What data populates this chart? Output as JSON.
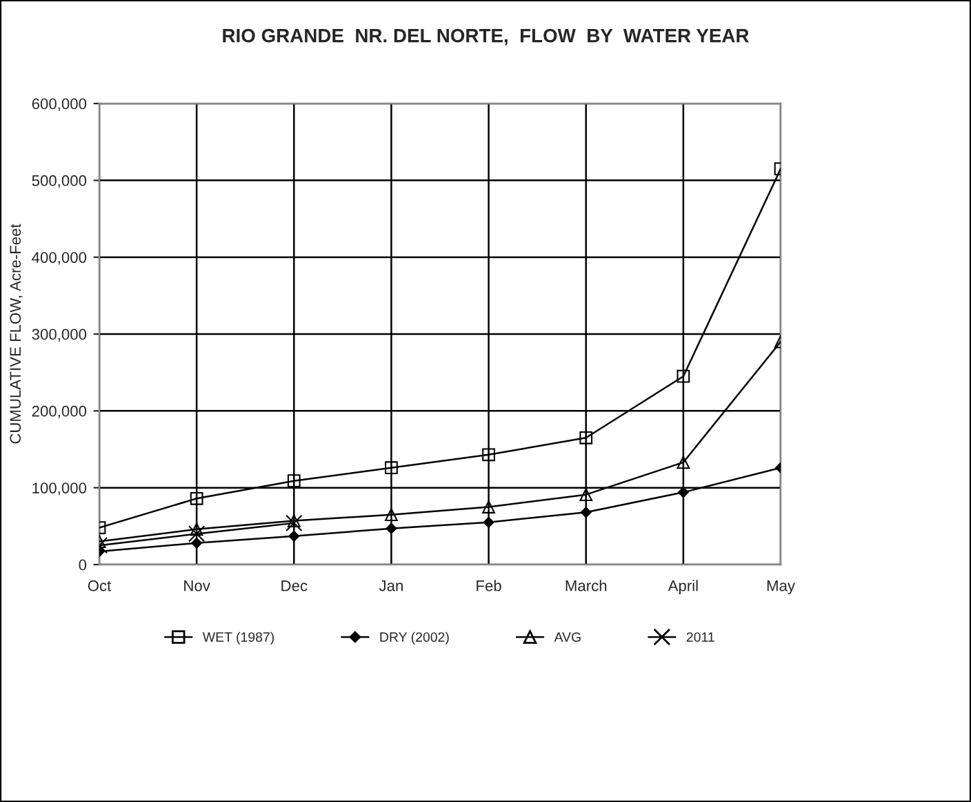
{
  "chart_data": {
    "type": "line",
    "title": "RIO GRANDE  NR. DEL NORTE,  FLOW  BY  WATER YEAR",
    "ylabel": "CUMULATIVE FLOW, Acre-Feet",
    "categories": [
      "Oct",
      "Nov",
      "Dec",
      "Jan",
      "Feb",
      "March",
      "April",
      "May"
    ],
    "series": [
      {
        "name": "WET (1987)",
        "color": "#000000",
        "marker": "square",
        "values": [
          48000,
          86000,
          109000,
          126000,
          143000,
          165000,
          245000,
          515000
        ]
      },
      {
        "name": "DRY (2002)",
        "color": "#000000",
        "marker": "diamond",
        "values": [
          17000,
          28000,
          37000,
          47000,
          55000,
          68000,
          94000,
          126000
        ]
      },
      {
        "name": "AVG",
        "color": "#000000",
        "marker": "triangle",
        "values": [
          30000,
          46000,
          57000,
          65000,
          75000,
          91000,
          133000,
          290000
        ]
      },
      {
        "name": "2011",
        "color": "#000000",
        "marker": "cross",
        "values": [
          25000,
          40000,
          54000,
          null,
          null,
          null,
          null,
          null
        ]
      }
    ],
    "ylim": [
      0,
      600000
    ],
    "yticks": [
      0,
      {
        "value": 100000,
        "label": "100,000"
      },
      {
        "value": 200000,
        "label": "200,000"
      },
      {
        "value": 300000,
        "label": "300,000"
      },
      {
        "value": 400000,
        "label": "400,000"
      },
      {
        "value": 500000,
        "label": "500,000"
      },
      {
        "value": 600000,
        "label": "600,000"
      }
    ],
    "grid": true,
    "legend": "bottom",
    "line_style": "solid"
  }
}
